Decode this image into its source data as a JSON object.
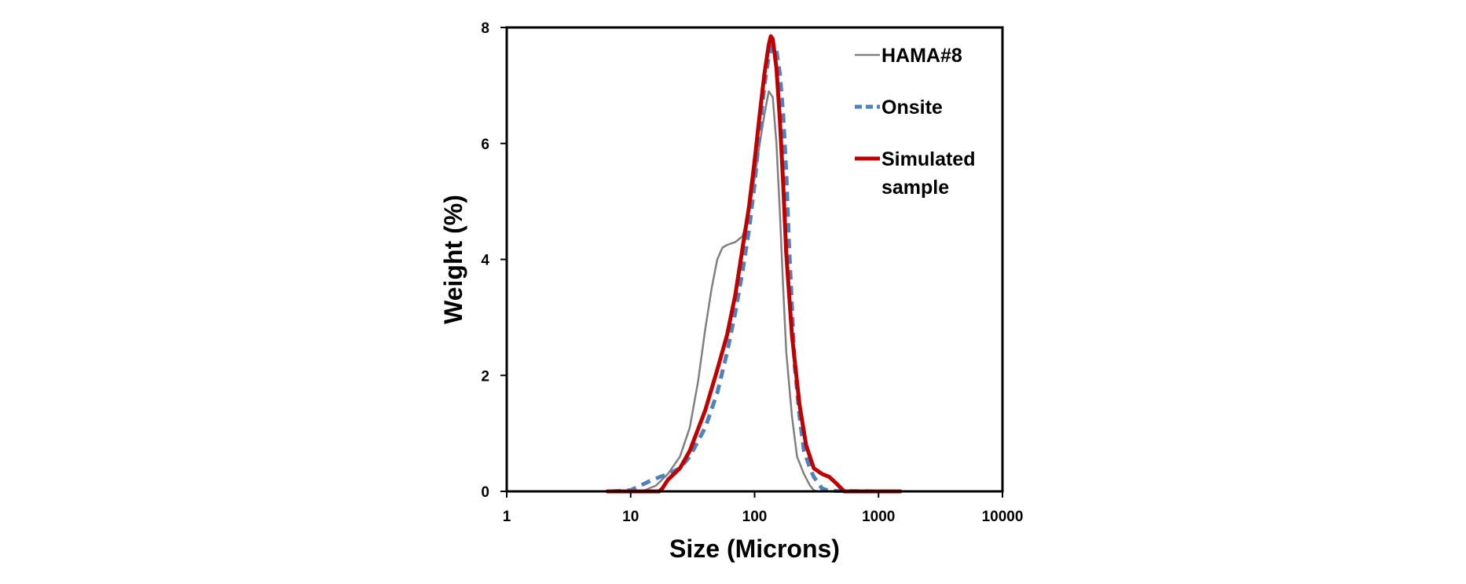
{
  "chart_data": {
    "type": "line",
    "title": "",
    "xlabel": "Size (Microns)",
    "ylabel": "Weight (%)",
    "x_scale": "log",
    "xlim": [
      1,
      10000
    ],
    "ylim": [
      0,
      8
    ],
    "x_ticks": [
      1,
      10,
      100,
      1000,
      10000
    ],
    "x_tick_labels": [
      "1",
      "10",
      "100",
      "1000",
      "10000"
    ],
    "y_ticks": [
      0,
      2,
      4,
      6,
      8
    ],
    "y_tick_labels": [
      "0",
      "2",
      "4",
      "6",
      "8"
    ],
    "grid": false,
    "legend_position": "top-right",
    "series": [
      {
        "name": "HAMA#8",
        "color": "#808080",
        "style": "solid",
        "points": [
          [
            6.5,
            0
          ],
          [
            10,
            0
          ],
          [
            13,
            0.02
          ],
          [
            16,
            0.1
          ],
          [
            20,
            0.3
          ],
          [
            25,
            0.6
          ],
          [
            30,
            1.1
          ],
          [
            35,
            1.9
          ],
          [
            40,
            2.8
          ],
          [
            45,
            3.5
          ],
          [
            50,
            4.0
          ],
          [
            55,
            4.2
          ],
          [
            60,
            4.25
          ],
          [
            70,
            4.3
          ],
          [
            80,
            4.4
          ],
          [
            90,
            4.8
          ],
          [
            100,
            5.4
          ],
          [
            110,
            6.0
          ],
          [
            120,
            6.5
          ],
          [
            130,
            6.9
          ],
          [
            140,
            6.8
          ],
          [
            150,
            6.0
          ],
          [
            160,
            4.8
          ],
          [
            170,
            3.5
          ],
          [
            180,
            2.4
          ],
          [
            200,
            1.3
          ],
          [
            220,
            0.6
          ],
          [
            250,
            0.3
          ],
          [
            280,
            0.1
          ],
          [
            300,
            0.02
          ],
          [
            320,
            0
          ],
          [
            600,
            0
          ]
        ]
      },
      {
        "name": "Onsite",
        "color": "#4f81bd",
        "style": "dashed",
        "points": [
          [
            7,
            0
          ],
          [
            10,
            0.02
          ],
          [
            12,
            0.1
          ],
          [
            15,
            0.2
          ],
          [
            20,
            0.3
          ],
          [
            25,
            0.4
          ],
          [
            30,
            0.6
          ],
          [
            40,
            1.1
          ],
          [
            50,
            1.7
          ],
          [
            60,
            2.4
          ],
          [
            70,
            3.1
          ],
          [
            80,
            3.8
          ],
          [
            90,
            4.5
          ],
          [
            100,
            5.3
          ],
          [
            110,
            6.2
          ],
          [
            120,
            7.0
          ],
          [
            130,
            7.5
          ],
          [
            140,
            7.7
          ],
          [
            150,
            7.6
          ],
          [
            160,
            7.2
          ],
          [
            170,
            6.5
          ],
          [
            180,
            5.5
          ],
          [
            190,
            4.2
          ],
          [
            200,
            3.2
          ],
          [
            210,
            2.2
          ],
          [
            230,
            1.3
          ],
          [
            250,
            0.7
          ],
          [
            280,
            0.4
          ],
          [
            300,
            0.25
          ],
          [
            350,
            0.05
          ],
          [
            400,
            0.01
          ],
          [
            1000,
            0
          ],
          [
            1500,
            0
          ]
        ]
      },
      {
        "name": "Simulated sample",
        "color": "#c00000",
        "style": "solid",
        "points": [
          [
            6.5,
            0
          ],
          [
            10,
            0
          ],
          [
            17,
            0
          ],
          [
            18,
            0.05
          ],
          [
            20,
            0.2
          ],
          [
            25,
            0.4
          ],
          [
            30,
            0.7
          ],
          [
            40,
            1.4
          ],
          [
            50,
            2.1
          ],
          [
            60,
            2.7
          ],
          [
            70,
            3.4
          ],
          [
            80,
            4.2
          ],
          [
            90,
            4.9
          ],
          [
            100,
            5.7
          ],
          [
            110,
            6.5
          ],
          [
            120,
            7.2
          ],
          [
            130,
            7.7
          ],
          [
            135,
            7.85
          ],
          [
            140,
            7.8
          ],
          [
            150,
            7.3
          ],
          [
            160,
            6.4
          ],
          [
            170,
            5.3
          ],
          [
            180,
            4.1
          ],
          [
            200,
            2.7
          ],
          [
            230,
            1.5
          ],
          [
            260,
            0.8
          ],
          [
            300,
            0.4
          ],
          [
            350,
            0.3
          ],
          [
            400,
            0.25
          ],
          [
            450,
            0.15
          ],
          [
            500,
            0.05
          ],
          [
            530,
            0
          ],
          [
            1000,
            0
          ],
          [
            1500,
            0
          ]
        ]
      }
    ]
  }
}
